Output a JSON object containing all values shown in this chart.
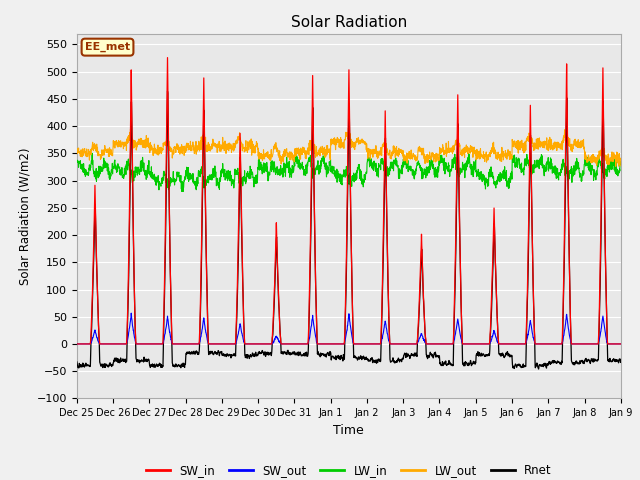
{
  "title": "Solar Radiation",
  "xlabel": "Time",
  "ylabel": "Solar Radiation (W/m2)",
  "ylim": [
    -100,
    570
  ],
  "yticks": [
    -100,
    -50,
    0,
    50,
    100,
    150,
    200,
    250,
    300,
    350,
    400,
    450,
    500,
    550
  ],
  "plot_bg_color": "#e8e8e8",
  "fig_bg_color": "#f0f0f0",
  "annotation_text": "EE_met",
  "annotation_color": "#993300",
  "annotation_bg": "#ffffcc",
  "colors": {
    "SW_in": "#ff0000",
    "SW_out": "#0000ff",
    "LW_in": "#00cc00",
    "LW_out": "#ffaa00",
    "Rnet": "#000000"
  },
  "n_days": 15,
  "x_labels": [
    "Dec 25",
    "Dec 26",
    "Dec 27",
    "Dec 28",
    "Dec 29",
    "Dec 30",
    "Dec 31",
    "Jan 1",
    "Jan 2",
    "Jan 3",
    "Jan 4",
    "Jan 5",
    "Jan 6",
    "Jan 7",
    "Jan 8",
    "Jan 9"
  ],
  "grid_color": "#ffffff",
  "SW_in_peaks": [
    290,
    505,
    525,
    488,
    390,
    222,
    495,
    505,
    430,
    200,
    460,
    250,
    435,
    515,
    505,
    0
  ],
  "SW_out_peaks": [
    25,
    55,
    50,
    48,
    38,
    15,
    52,
    55,
    43,
    20,
    47,
    25,
    43,
    55,
    52,
    0
  ],
  "LW_in_base": 320,
  "LW_out_base": 345,
  "night_rnet": -25
}
